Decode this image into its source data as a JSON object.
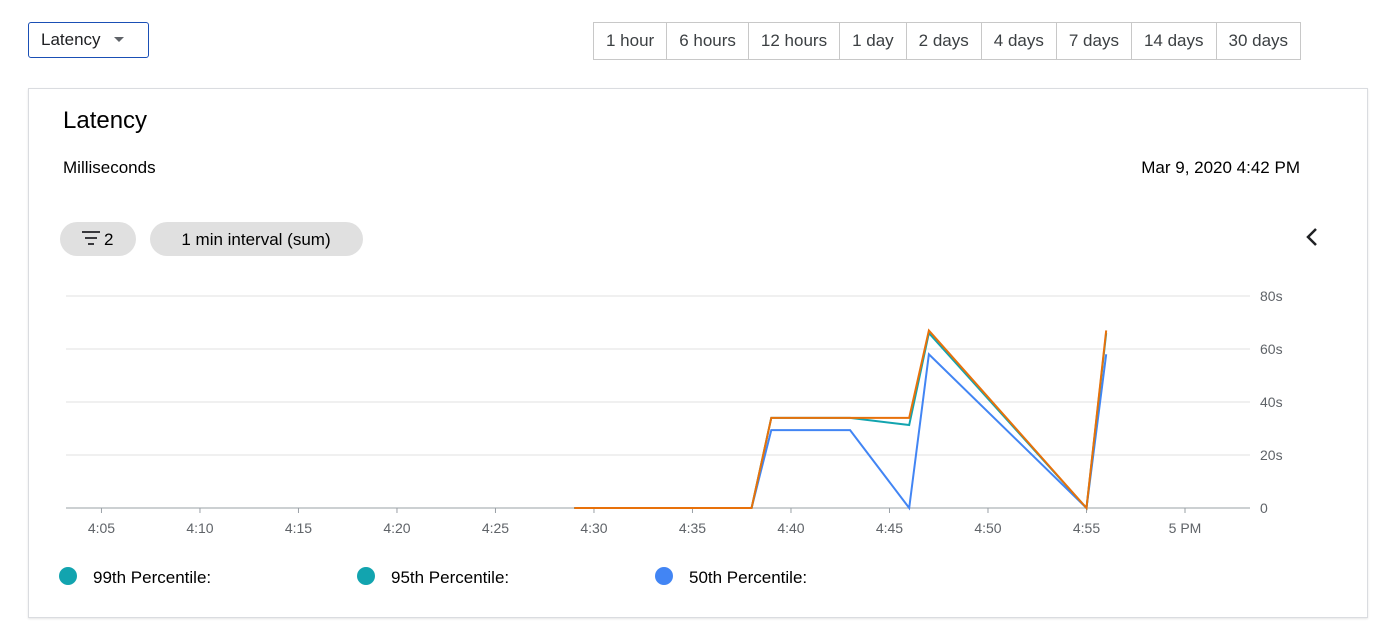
{
  "toolbar": {
    "metric_dropdown": "Latency",
    "time_ranges": [
      "1 hour",
      "6 hours",
      "12 hours",
      "1 day",
      "2 days",
      "4 days",
      "7 days",
      "14 days",
      "30 days"
    ]
  },
  "card": {
    "title": "Latency",
    "subtitle": "Milliseconds",
    "timestamp": "Mar 9, 2020 4:42 PM",
    "filter_count": "2",
    "interval_chip": "1 min interval (sum)"
  },
  "chart_data": {
    "type": "line",
    "x": [
      29,
      38,
      39,
      43,
      46,
      47,
      55,
      56
    ],
    "xlim": [
      3.2,
      63.3
    ],
    "xticks": [
      {
        "value": 5,
        "label": "4:05"
      },
      {
        "value": 10,
        "label": "4:10"
      },
      {
        "value": 15,
        "label": "4:15"
      },
      {
        "value": 20,
        "label": "4:20"
      },
      {
        "value": 25,
        "label": "4:25"
      },
      {
        "value": 30,
        "label": "4:30"
      },
      {
        "value": 35,
        "label": "4:35"
      },
      {
        "value": 40,
        "label": "4:40"
      },
      {
        "value": 45,
        "label": "4:45"
      },
      {
        "value": 50,
        "label": "4:50"
      },
      {
        "value": 55,
        "label": "4:55"
      },
      {
        "value": 60,
        "label": "5 PM"
      }
    ],
    "ylim": [
      0,
      80
    ],
    "yticks": [
      0,
      {
        "value": 20,
        "label": "20s"
      },
      {
        "value": 40,
        "label": "40s"
      },
      {
        "value": 60,
        "label": "60s"
      },
      {
        "value": 80,
        "label": "80s"
      }
    ],
    "grid": true,
    "series": [
      {
        "name": "99th Percentile:",
        "color": "#e8710a",
        "legend_color": "#12a4af",
        "values": [
          0,
          0,
          34,
          34,
          34,
          67,
          0,
          67
        ]
      },
      {
        "name": "95th Percentile:",
        "color": "#12a4af",
        "legend_color": "#12a4af",
        "values": [
          0,
          0,
          34,
          34,
          31.3,
          66,
          0,
          66
        ]
      },
      {
        "name": "50th Percentile:",
        "color": "#4285f4",
        "legend_color": "#4285f4",
        "values": [
          0,
          0,
          29.4,
          29.4,
          0,
          58,
          0,
          58
        ]
      }
    ]
  }
}
